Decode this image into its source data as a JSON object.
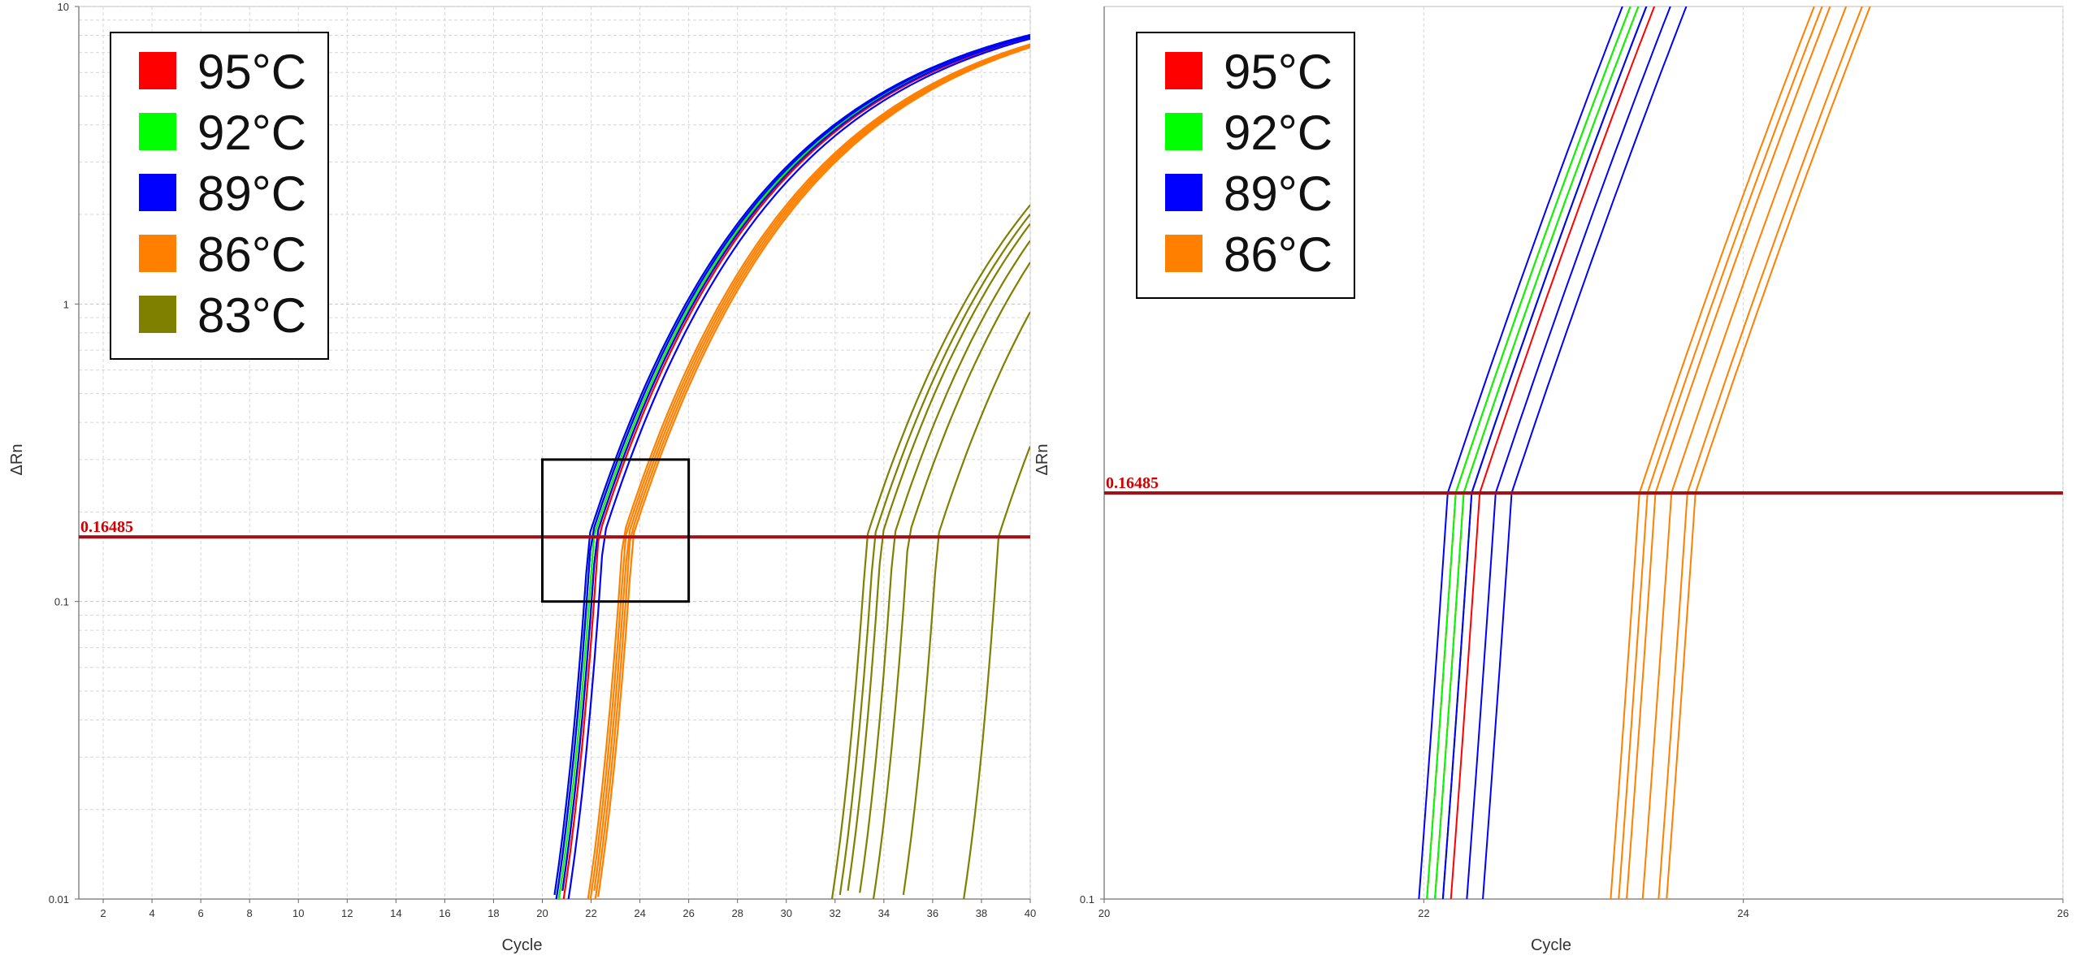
{
  "chart_data": [
    {
      "type": "line",
      "title": "",
      "xlabel": "Cycle",
      "ylabel": "ΔRn",
      "xlim": [
        1,
        40
      ],
      "ylim": [
        0.01,
        10
      ],
      "yscale": "log",
      "x_ticks": [
        "2",
        "4",
        "6",
        "8",
        "10",
        "12",
        "14",
        "16",
        "18",
        "20",
        "22",
        "24",
        "26",
        "28",
        "30",
        "32",
        "34",
        "36",
        "38",
        "40"
      ],
      "y_ticks": [
        "0.01",
        "0.1",
        "1",
        "10"
      ],
      "threshold": {
        "value": 0.16485,
        "label": "0.16485",
        "color": "#a50f15"
      },
      "zoom_box": {
        "x_range": [
          20,
          26
        ],
        "y_range": [
          0.1,
          0.3
        ]
      },
      "legend_position": "top-left",
      "series": [
        {
          "name": "95°C",
          "color": "#ff0000",
          "ct": [
            22.0,
            22.1,
            22.2,
            22.3
          ]
        },
        {
          "name": "92°C",
          "color": "#00ff00",
          "ct": [
            21.9,
            22.0,
            22.1,
            22.2
          ]
        },
        {
          "name": "89°C",
          "color": "#0000ff",
          "ct": [
            21.9,
            22.0,
            22.2,
            22.5
          ]
        },
        {
          "name": "86°C",
          "color": "#ff8000",
          "ct": [
            23.3,
            23.4,
            23.5,
            23.6,
            23.7
          ]
        },
        {
          "name": "83°C",
          "color": "#808000",
          "ct": [
            33.3,
            33.6,
            33.9,
            34.4,
            35.0,
            36.2,
            38.7
          ]
        }
      ]
    },
    {
      "type": "line",
      "title": "",
      "xlabel": "Cycle",
      "ylabel": "ΔRn",
      "xlim": [
        20,
        26
      ],
      "ylim": [
        0.1,
        0.3
      ],
      "yscale": "log",
      "x_ticks": [
        "20",
        "22",
        "24",
        "26"
      ],
      "y_ticks": [
        "0.1"
      ],
      "threshold": {
        "value": 0.16485,
        "label": "0.16485",
        "color": "#a50f15"
      },
      "legend_position": "top-left",
      "series": [
        {
          "name": "95°C",
          "color": "#ff0000",
          "ct": [
            22.2,
            22.25,
            22.3,
            22.35
          ]
        },
        {
          "name": "92°C",
          "color": "#00ff00",
          "ct": [
            22.2,
            22.25,
            22.3
          ]
        },
        {
          "name": "89°C",
          "color": "#0000ff",
          "ct": [
            22.15,
            22.3,
            22.45,
            22.55
          ]
        },
        {
          "name": "86°C",
          "color": "#ff8000",
          "ct": [
            23.35,
            23.4,
            23.45,
            23.55,
            23.65,
            23.7
          ]
        }
      ]
    }
  ]
}
